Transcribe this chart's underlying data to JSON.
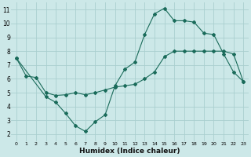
{
  "xlabel": "Humidex (Indice chaleur)",
  "background_color": "#cce8e8",
  "grid_color": "#aacfcf",
  "line_color": "#1a6b5a",
  "xlim": [
    -0.5,
    23.5
  ],
  "ylim": [
    1.5,
    11.5
  ],
  "xticks": [
    0,
    1,
    2,
    3,
    4,
    5,
    6,
    7,
    8,
    9,
    10,
    11,
    12,
    13,
    14,
    15,
    16,
    17,
    18,
    19,
    20,
    21,
    22,
    23
  ],
  "yticks": [
    2,
    3,
    4,
    5,
    6,
    7,
    8,
    9,
    10,
    11
  ],
  "line1_x": [
    0,
    1,
    2,
    3,
    4,
    5,
    6,
    7,
    8,
    9,
    10,
    11,
    12,
    13,
    14,
    15,
    16,
    17,
    18,
    19,
    20,
    21,
    22,
    23
  ],
  "line1_y": [
    7.5,
    6.2,
    6.1,
    5.0,
    4.8,
    4.85,
    5.0,
    4.85,
    5.0,
    5.2,
    5.4,
    5.5,
    5.6,
    6.0,
    6.5,
    7.6,
    8.0,
    8.0,
    8.0,
    8.0,
    8.0,
    8.0,
    7.8,
    5.8
  ],
  "line2_x": [
    0,
    3,
    4,
    5,
    6,
    7,
    8,
    9,
    10,
    11,
    12,
    13,
    14,
    15,
    16,
    17,
    18,
    19,
    20,
    21,
    22,
    23
  ],
  "line2_y": [
    7.5,
    4.7,
    4.3,
    3.5,
    2.6,
    2.2,
    2.9,
    3.4,
    5.5,
    6.7,
    7.2,
    9.2,
    10.7,
    11.1,
    10.2,
    10.2,
    10.1,
    9.3,
    9.2,
    7.8,
    6.5,
    5.8
  ]
}
